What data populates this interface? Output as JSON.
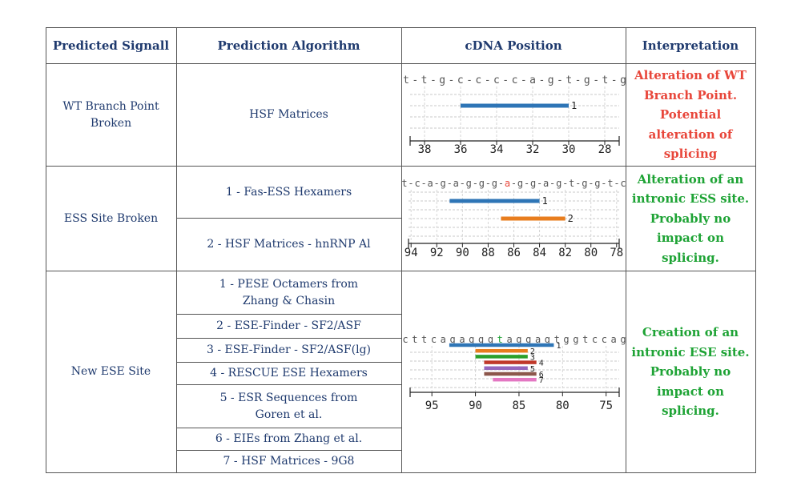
{
  "headers": {
    "signal": "Predicted Signall",
    "algorithm": "Prediction Algorithm",
    "position": "cDNA Position",
    "interpretation": "Interpretation"
  },
  "rows": [
    {
      "signal": "WT Branch Point Broken",
      "algorithms": [
        "HSF Matrices"
      ],
      "interpretation": "Alteration of WT Branch Point. Potential alteration of splicing",
      "interpretation_color": "#e8463a",
      "sequence": "t-t-g-c-c-c-c-a-g-t-g-t-g",
      "axis_ticks": [
        "38",
        "36",
        "34",
        "32",
        "30",
        "28"
      ],
      "bars": [
        {
          "label": "1",
          "start": 36,
          "end": 30,
          "color": "#2e75b6"
        }
      ]
    },
    {
      "signal": "ESS Site Broken",
      "algorithms": [
        "1 - Fas-ESS Hexamers",
        "2 - HSF Matrices - hnRNP Al"
      ],
      "interpretation": "Alteration of an intronic ESS site. Probably no impact on splicing.",
      "interpretation_color": "#1ea335",
      "sequence": "t-c-a-g-a-g-g-g-a-g-g-a-g-t-g-g-t-c",
      "highlight_char": "a",
      "highlight_color": "#e8463a",
      "axis_ticks": [
        "94",
        "92",
        "90",
        "88",
        "86",
        "84",
        "82",
        "80",
        "78"
      ],
      "bars": [
        {
          "label": "1",
          "start": 91,
          "end": 84,
          "color": "#2e75b6"
        },
        {
          "label": "2",
          "start": 87,
          "end": 82,
          "color": "#e87d1e"
        }
      ]
    },
    {
      "signal": "New ESE Site",
      "algorithms": [
        "1 - PESE Octamers from Zhang & Chasin",
        "2 - ESE-Finder - SF2/ASF",
        "3 - ESE-Finder - SF2/ASF(lg)",
        "4 - RESCUE ESE Hexamers",
        "5 - ESR Sequences from Goren et al.",
        "6 - EIEs from Zhang et al.",
        "7 - HSF Matrices - 9G8"
      ],
      "interpretation": "Creation of an intronic ESE site. Probably no impact on splicing.",
      "interpretation_color": "#1ea335",
      "sequence": "cttcagagggtaggagtggtccag",
      "highlight_char": "t",
      "highlight_color": "#1ea335",
      "axis_ticks": [
        "95",
        "90",
        "85",
        "80",
        "75"
      ],
      "bars": [
        {
          "label": "1",
          "start": 93,
          "end": 81,
          "color": "#2e75b6"
        },
        {
          "label": "2",
          "start": 90,
          "end": 84,
          "color": "#e87d1e"
        },
        {
          "label": "3",
          "start": 90,
          "end": 84,
          "color": "#2ca02c"
        },
        {
          "label": "4",
          "start": 89,
          "end": 83,
          "color": "#c0392b"
        },
        {
          "label": "5",
          "start": 89,
          "end": 84,
          "color": "#9467bd"
        },
        {
          "label": "6",
          "start": 89,
          "end": 83,
          "color": "#8c564b"
        },
        {
          "label": "7",
          "start": 88,
          "end": 83,
          "color": "#e377c2"
        }
      ]
    }
  ]
}
